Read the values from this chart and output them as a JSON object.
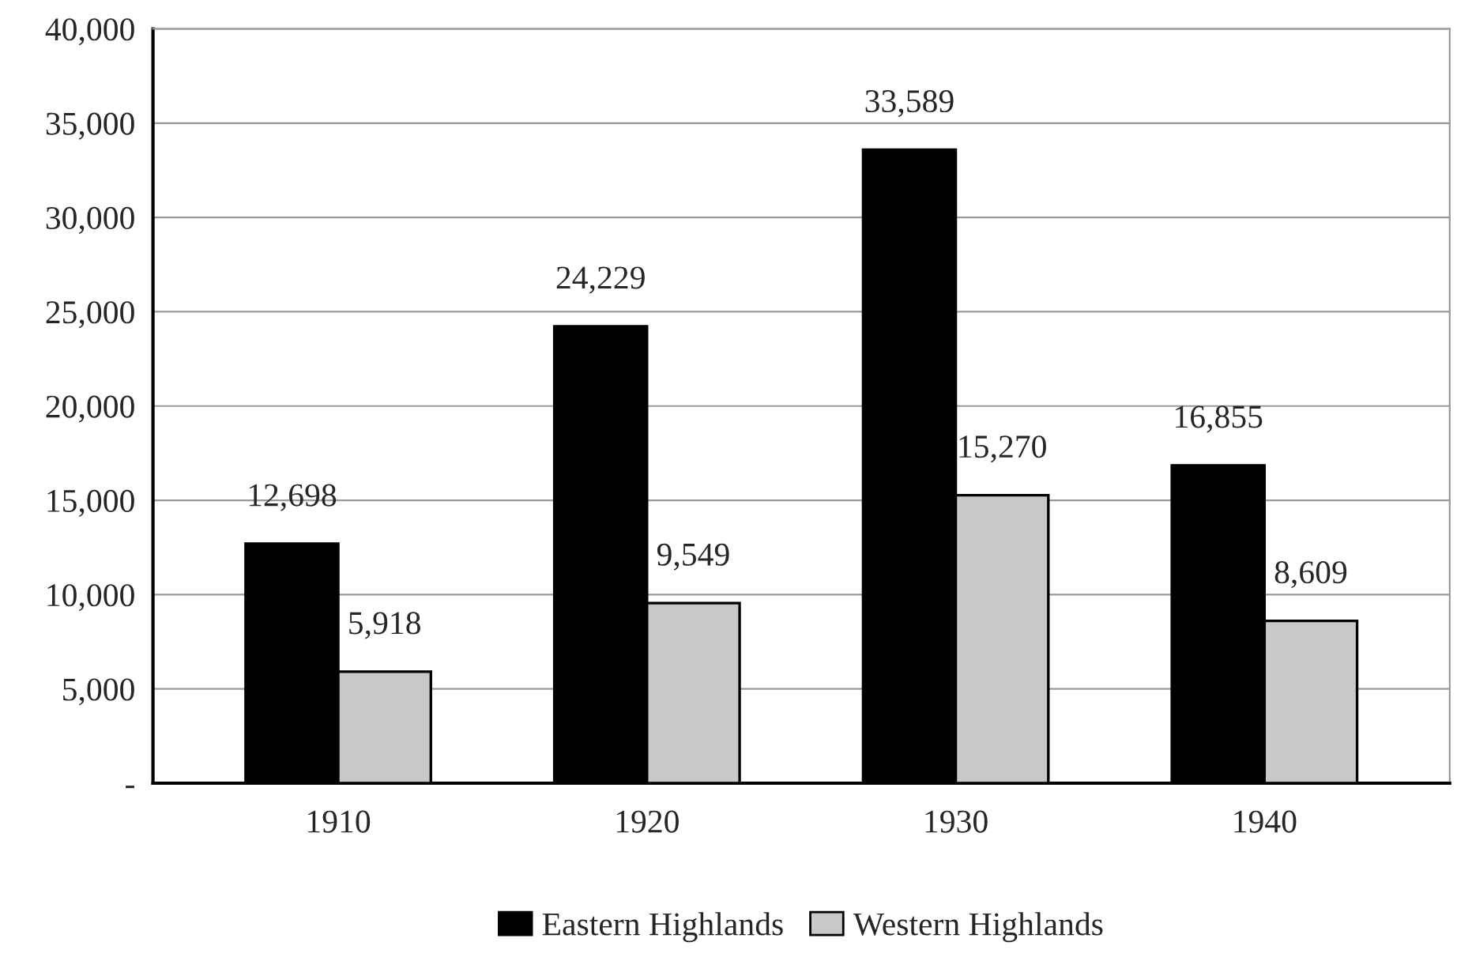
{
  "chart_data": {
    "type": "bar",
    "categories": [
      "1910",
      "1920",
      "1930",
      "1940"
    ],
    "series": [
      {
        "name": "Eastern Highlands",
        "color": "#000000",
        "values": [
          12698,
          24229,
          33589,
          16855
        ],
        "value_labels": [
          "12,698",
          "24,229",
          "33,589",
          "16,855"
        ]
      },
      {
        "name": "Western Highlands",
        "color": "#c8c8c8",
        "values": [
          5918,
          9549,
          15270,
          8609
        ],
        "value_labels": [
          "5,918",
          "9,549",
          "15,270",
          "8,609"
        ]
      }
    ],
    "ylim": [
      0,
      40000
    ],
    "yticks": [
      {
        "value": 0,
        "label": "-"
      },
      {
        "value": 5000,
        "label": "5,000"
      },
      {
        "value": 10000,
        "label": "10,000"
      },
      {
        "value": 15000,
        "label": "15,000"
      },
      {
        "value": 20000,
        "label": "20,000"
      },
      {
        "value": 25000,
        "label": "25,000"
      },
      {
        "value": 30000,
        "label": "30,000"
      },
      {
        "value": 35000,
        "label": "35,000"
      },
      {
        "value": 40000,
        "label": "40,000"
      }
    ],
    "grid": "y",
    "legend": "bottom"
  }
}
